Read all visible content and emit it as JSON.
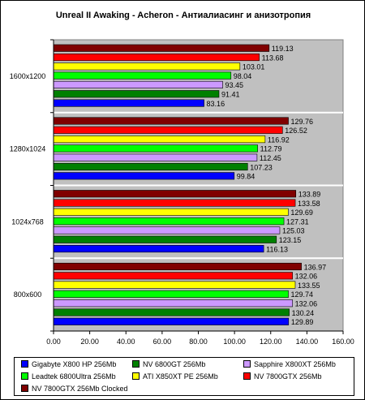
{
  "chart_data": {
    "type": "bar",
    "orientation": "horizontal",
    "title": "Unreal II Awaking - Acheron - Антиалиасинг и анизотропия",
    "categories": [
      "1600x1200",
      "1280x1024",
      "1024x768",
      "800x600"
    ],
    "xlim": [
      0,
      160
    ],
    "xticks": [
      "0.00",
      "20.00",
      "40.00",
      "60.00",
      "80.00",
      "100.00",
      "120.00",
      "140.00",
      "160.00"
    ],
    "grid": false,
    "legend_position": "bottom",
    "series": [
      {
        "name": "NV 7800GTX 256Mb Clocked",
        "color": "#800000",
        "values": [
          119.13,
          129.76,
          133.89,
          136.97
        ]
      },
      {
        "name": "NV 7800GTX 256Mb",
        "color": "#ff0000",
        "values": [
          113.68,
          126.52,
          133.58,
          132.06
        ]
      },
      {
        "name": "ATI X850XT PE 256Mb",
        "color": "#ffff00",
        "values": [
          103.01,
          116.92,
          129.69,
          133.55
        ]
      },
      {
        "name": "Leadtek 6800Ultra 256Mb",
        "color": "#00ff00",
        "values": [
          98.04,
          112.79,
          127.31,
          129.74
        ]
      },
      {
        "name": "Sapphire X800XT 256Mb",
        "color": "#cc99ff",
        "values": [
          93.45,
          112.45,
          125.03,
          132.06
        ]
      },
      {
        "name": "NV 6800GT 256Mb",
        "color": "#008000",
        "values": [
          91.41,
          107.23,
          123.15,
          130.24
        ]
      },
      {
        "name": "Gigabyte X800 HP 256Mb",
        "color": "#0000ff",
        "values": [
          83.16,
          99.84,
          116.13,
          129.89
        ]
      }
    ],
    "value_labels": [
      [
        "119.13",
        "113.68",
        "103.01",
        "98.04",
        "93.45",
        "91.41",
        "83.16"
      ],
      [
        "129.76",
        "126.52",
        "116.92",
        "112.79",
        "112.45",
        "107.23",
        "99.84"
      ],
      [
        "133.89",
        "133.58",
        "129.69",
        "127.31",
        "125.03",
        "123.15",
        "116.13"
      ],
      [
        "136.97",
        "132.06",
        "133.55",
        "129.74",
        "132.06",
        "130.24",
        "129.89"
      ]
    ]
  },
  "legend": {
    "items": [
      {
        "label": "Gigabyte X800 HP 256Mb",
        "color": "#0000ff"
      },
      {
        "label": "NV 6800GT 256Mb",
        "color": "#008000"
      },
      {
        "label": "Sapphire X800XT 256Mb",
        "color": "#cc99ff"
      },
      {
        "label": "Leadtek 6800Ultra 256Mb",
        "color": "#00ff00"
      },
      {
        "label": "ATI X850XT PE 256Mb",
        "color": "#ffff00"
      },
      {
        "label": "NV 7800GTX 256Mb",
        "color": "#ff0000"
      },
      {
        "label": "NV 7800GTX 256Mb Clocked",
        "color": "#800000"
      }
    ]
  },
  "colors": {
    "plot_background": "#c0c0c0",
    "bar_border": "#000000",
    "separator": "#ffffff"
  }
}
